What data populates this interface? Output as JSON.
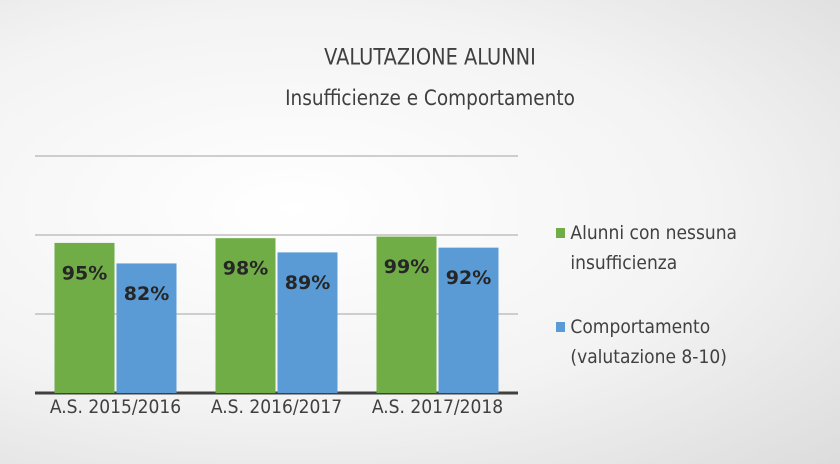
{
  "chart_data": {
    "type": "bar",
    "title": "VALUTAZIONE ALUNNI",
    "subtitle": "Insufficienze e Comportamento",
    "categories": [
      "A.S. 2015/2016",
      "A.S. 2016/2017",
      "A.S. 2017/2018"
    ],
    "series": [
      {
        "name": "Alunni con nessuna insufficienza",
        "color": "#70ad47",
        "values": [
          95,
          98,
          99
        ],
        "value_labels": [
          "95%",
          "98%",
          "99%"
        ]
      },
      {
        "name": "Comportamento (valutazione 8-10)",
        "color": "#5b9bd5",
        "values": [
          82,
          89,
          92
        ],
        "value_labels": [
          "82%",
          "89%",
          "92%"
        ]
      }
    ],
    "ylim": [
      0,
      150
    ],
    "yticks": [
      0,
      50,
      100,
      150
    ],
    "grid": true,
    "legend": "right"
  }
}
